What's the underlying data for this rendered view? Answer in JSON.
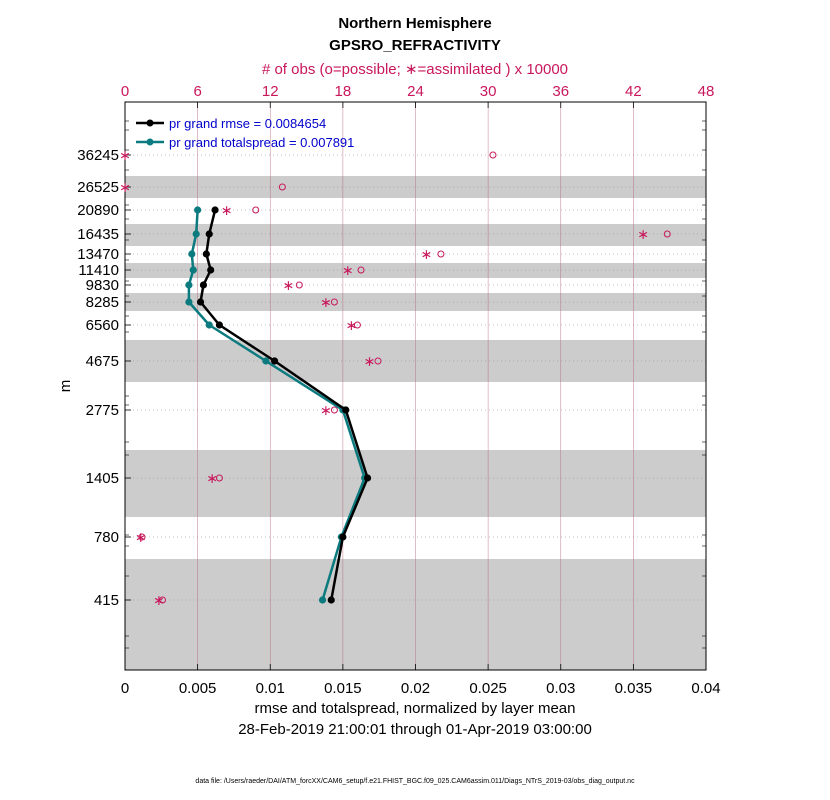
{
  "chart_data": {
    "type": "line",
    "title": "Northern Hemisphere",
    "subtitle": "GPSRO_REFRACTIVITY",
    "top_axis_label": "# of obs (o=possible; ∗=assimilated ) x 10000",
    "top_ticks": [
      "0",
      "6",
      "12",
      "18",
      "24",
      "30",
      "36",
      "42",
      "48"
    ],
    "top_range": [
      0,
      48
    ],
    "xlabel": "rmse and totalspread, normalized by layer mean",
    "date_range": "28-Feb-2019 21:00:01 through 01-Apr-2019 03:00:00",
    "x_ticks": [
      "0",
      "0.005",
      "0.01",
      "0.015",
      "0.02",
      "0.025",
      "0.03",
      "0.035",
      "0.04"
    ],
    "xlim": [
      0,
      0.04
    ],
    "ylabel": "m",
    "y_ticks": [
      "36245",
      "26525",
      "20890",
      "16435",
      "13470",
      "11410",
      "9830",
      "8285",
      "6560",
      "4675",
      "2775",
      "1405",
      "780",
      "415"
    ],
    "levels": [
      36245,
      26525,
      20890,
      16435,
      13470,
      11410,
      9830,
      8285,
      6560,
      4675,
      2775,
      1405,
      780,
      415
    ],
    "shaded_bands": [
      {
        "label": "26525"
      },
      {
        "label": "16435"
      },
      {
        "label": "11410"
      },
      {
        "label": "8285"
      },
      {
        "label": "4675"
      },
      {
        "label": "1405"
      },
      {
        "label": "415"
      }
    ],
    "series": [
      {
        "name": "rmse",
        "legend": "pr grand rmse = 0.0084654",
        "color": "#000000",
        "levels": [
          20890,
          16435,
          13470,
          11410,
          9830,
          8285,
          6560,
          4675,
          2775,
          1405,
          780,
          415
        ],
        "values": [
          0.0062,
          0.0058,
          0.0056,
          0.0059,
          0.0054,
          0.0052,
          0.0065,
          0.0103,
          0.0152,
          0.0167,
          0.015,
          0.0142
        ]
      },
      {
        "name": "totalspread",
        "legend": "pr grand totalspread = 0.007891",
        "color": "#0b7b80",
        "levels": [
          20890,
          16435,
          13470,
          11410,
          9830,
          8285,
          6560,
          4675,
          2775,
          1405,
          780,
          415
        ],
        "values": [
          0.005,
          0.0049,
          0.0046,
          0.0047,
          0.0044,
          0.0044,
          0.0058,
          0.0097,
          0.015,
          0.0165,
          0.0149,
          0.0136
        ]
      }
    ],
    "obs_possible": [
      {
        "level": 36245,
        "value": 30.4
      },
      {
        "level": 26525,
        "value": 13.0
      },
      {
        "level": 20890,
        "value": 10.8
      },
      {
        "level": 16435,
        "value": 44.8
      },
      {
        "level": 13470,
        "value": 26.1
      },
      {
        "level": 11410,
        "value": 19.5
      },
      {
        "level": 9830,
        "value": 14.4
      },
      {
        "level": 8285,
        "value": 17.3
      },
      {
        "level": 6560,
        "value": 19.2
      },
      {
        "level": 4675,
        "value": 20.9
      },
      {
        "level": 2775,
        "value": 17.3
      },
      {
        "level": 1405,
        "value": 7.8
      },
      {
        "level": 780,
        "value": 1.4
      },
      {
        "level": 415,
        "value": 3.1
      }
    ],
    "obs_assimilated": [
      {
        "level": 36245,
        "value": 0.0
      },
      {
        "level": 26525,
        "value": 0.0
      },
      {
        "level": 20890,
        "value": 8.4
      },
      {
        "level": 16435,
        "value": 42.8
      },
      {
        "level": 13470,
        "value": 24.9
      },
      {
        "level": 11410,
        "value": 18.4
      },
      {
        "level": 9830,
        "value": 13.5
      },
      {
        "level": 8285,
        "value": 16.6
      },
      {
        "level": 6560,
        "value": 18.7
      },
      {
        "level": 4675,
        "value": 20.2
      },
      {
        "level": 2775,
        "value": 16.6
      },
      {
        "level": 1405,
        "value": 7.2
      },
      {
        "level": 780,
        "value": 1.3
      },
      {
        "level": 415,
        "value": 2.8
      }
    ],
    "colors": {
      "obs": "#c8175b",
      "band": "#cccccc",
      "grid": "#b46478"
    }
  },
  "footer": "data file: /Users/raeder/DAI/ATM_forcXX/CAM6_setup/f.e21.FHIST_BGC.f09_025.CAM6assim.011/Diags_NTrS_2019-03/obs_diag_output.nc"
}
